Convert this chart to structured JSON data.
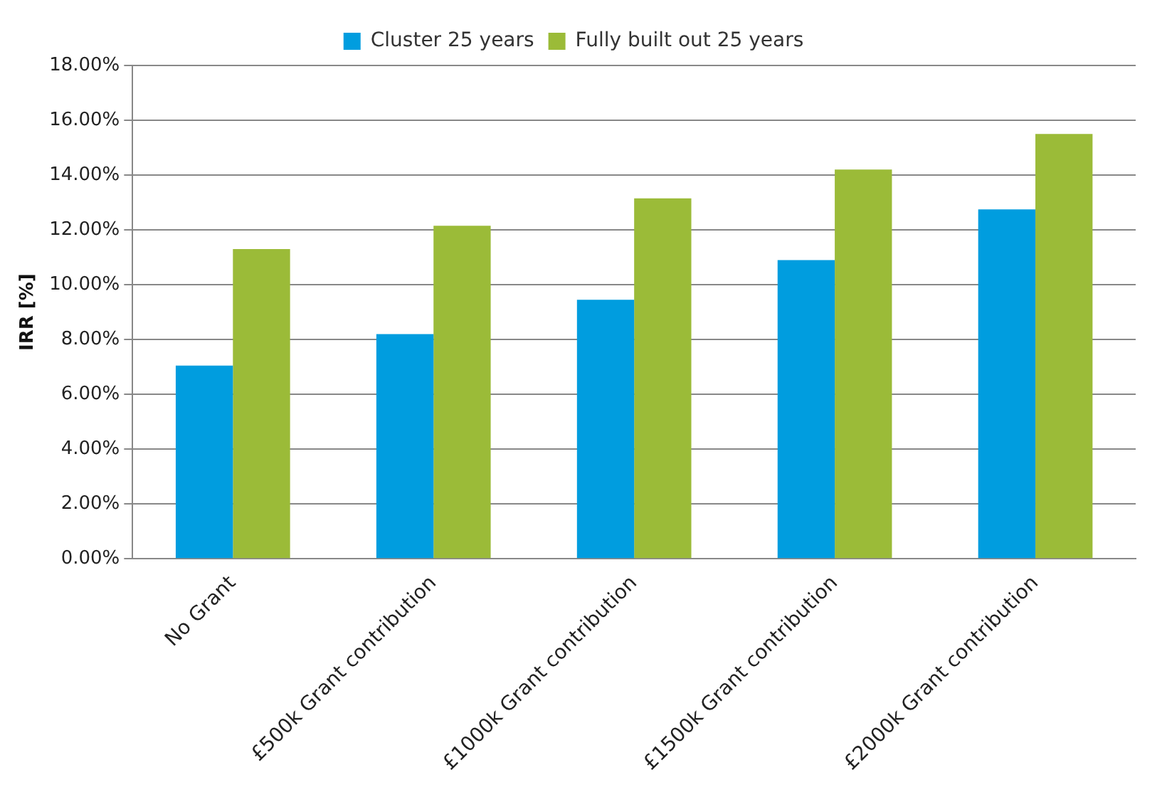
{
  "chart_data": {
    "type": "bar",
    "ylabel": "IRR [%]",
    "categories": [
      "No Grant",
      "£500k Grant contribution",
      "£1000k Grant contribution",
      "£1500k Grant contribution",
      "£2000k Grant contribution"
    ],
    "series": [
      {
        "name": "Cluster 25 years",
        "color": "#009ddf",
        "values": [
          7.05,
          8.2,
          9.45,
          10.9,
          12.75
        ]
      },
      {
        "name": "Fully built out 25 years",
        "color": "#9bbb38",
        "values": [
          11.3,
          12.15,
          13.15,
          14.2,
          15.5
        ]
      }
    ],
    "ylim": [
      0,
      18
    ],
    "yticks": [
      {
        "value": 0,
        "label": "0.00%"
      },
      {
        "value": 2,
        "label": "2.00%"
      },
      {
        "value": 4,
        "label": "4.00%"
      },
      {
        "value": 6,
        "label": "6.00%"
      },
      {
        "value": 8,
        "label": "8.00%"
      },
      {
        "value": 10,
        "label": "10.00%"
      },
      {
        "value": 12,
        "label": "12.00%"
      },
      {
        "value": 14,
        "label": "14.00%"
      },
      {
        "value": 16,
        "label": "16.00%"
      },
      {
        "value": 18,
        "label": "18.00%"
      }
    ],
    "grid": "y",
    "legend": "top"
  }
}
